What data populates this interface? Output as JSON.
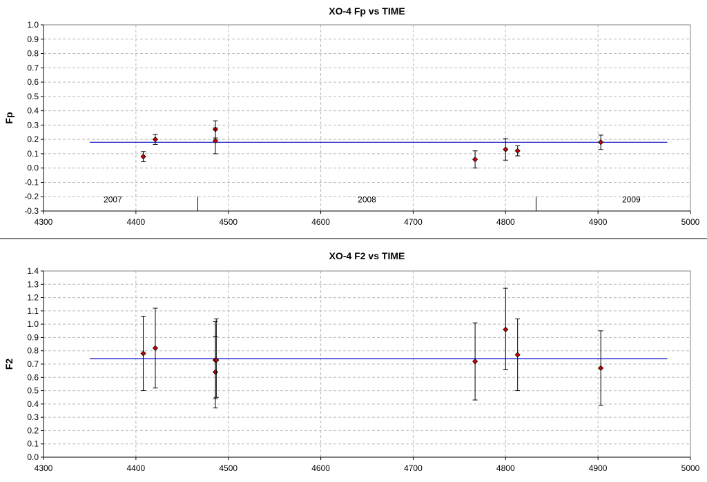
{
  "chart_data": [
    {
      "type": "scatter",
      "title": "XO-4 Fp vs TIME",
      "xlabel": "",
      "ylabel": "Fp",
      "xlim": [
        4300,
        5000
      ],
      "ylim": [
        -0.3,
        1.0
      ],
      "x_ticks": [
        "4300",
        "4400",
        "4500",
        "4600",
        "4700",
        "4800",
        "4900",
        "5000"
      ],
      "y_ticks": [
        "-0.3",
        "-0.2",
        "-0.1",
        "0.0",
        "0.1",
        "0.2",
        "0.3",
        "0.4",
        "0.5",
        "0.6",
        "0.7",
        "0.8",
        "0.9",
        "1.0"
      ],
      "grid": true,
      "series": [
        {
          "marker_color": "#cc0000",
          "points": [
            {
              "x": 4408,
              "y": 0.08,
              "ylo": 0.045,
              "yhi": 0.115
            },
            {
              "x": 4421,
              "y": 0.2,
              "ylo": 0.165,
              "yhi": 0.235
            },
            {
              "x": 4486,
              "y": 0.27,
              "ylo": 0.21,
              "yhi": 0.33
            },
            {
              "x": 4486,
              "y": 0.19,
              "ylo": 0.1,
              "yhi": 0.28
            },
            {
              "x": 4767,
              "y": 0.06,
              "ylo": 0.0,
              "yhi": 0.12
            },
            {
              "x": 4800,
              "y": 0.13,
              "ylo": 0.055,
              "yhi": 0.205
            },
            {
              "x": 4813,
              "y": 0.12,
              "ylo": 0.085,
              "yhi": 0.155
            },
            {
              "x": 4903,
              "y": 0.18,
              "ylo": 0.13,
              "yhi": 0.23
            }
          ]
        }
      ],
      "reference_line": {
        "y": 0.18,
        "x_start": 4350,
        "x_end": 4975,
        "color": "#0000cc"
      },
      "year_dividers": [
        4467,
        4833
      ],
      "year_labels": [
        {
          "text": "2007",
          "x": 4375,
          "y": -0.24
        },
        {
          "text": "2008",
          "x": 4650,
          "y": -0.24
        },
        {
          "text": "2009",
          "x": 4936,
          "y": -0.24
        }
      ]
    },
    {
      "type": "scatter",
      "title": "XO-4 F2 vs TIME",
      "xlabel": "",
      "ylabel": "F2",
      "xlim": [
        4300,
        5000
      ],
      "ylim": [
        0.0,
        1.4
      ],
      "x_ticks": [
        "4300",
        "4400",
        "4500",
        "4600",
        "4700",
        "4800",
        "4900",
        "5000"
      ],
      "y_ticks": [
        "0.0",
        "0.1",
        "0.2",
        "0.3",
        "0.4",
        "0.5",
        "0.6",
        "0.7",
        "0.8",
        "0.9",
        "1.0",
        "1.1",
        "1.2",
        "1.3",
        "1.4"
      ],
      "grid": true,
      "series": [
        {
          "marker_color": "#cc0000",
          "points": [
            {
              "x": 4408,
              "y": 0.78,
              "ylo": 0.5,
              "yhi": 1.06
            },
            {
              "x": 4421,
              "y": 0.82,
              "ylo": 0.52,
              "yhi": 1.12
            },
            {
              "x": 4486,
              "y": 0.73,
              "ylo": 0.44,
              "yhi": 1.02
            },
            {
              "x": 4486,
              "y": 0.64,
              "ylo": 0.37,
              "yhi": 0.91
            },
            {
              "x": 4487,
              "y": 0.73,
              "ylo": 0.45,
              "yhi": 1.04
            },
            {
              "x": 4767,
              "y": 0.72,
              "ylo": 0.43,
              "yhi": 1.01
            },
            {
              "x": 4800,
              "y": 0.96,
              "ylo": 0.66,
              "yhi": 1.27
            },
            {
              "x": 4813,
              "y": 0.77,
              "ylo": 0.5,
              "yhi": 1.04
            },
            {
              "x": 4903,
              "y": 0.67,
              "ylo": 0.39,
              "yhi": 0.95
            }
          ]
        }
      ],
      "reference_line": {
        "y": 0.74,
        "x_start": 4350,
        "x_end": 4975,
        "color": "#0000cc"
      }
    }
  ]
}
